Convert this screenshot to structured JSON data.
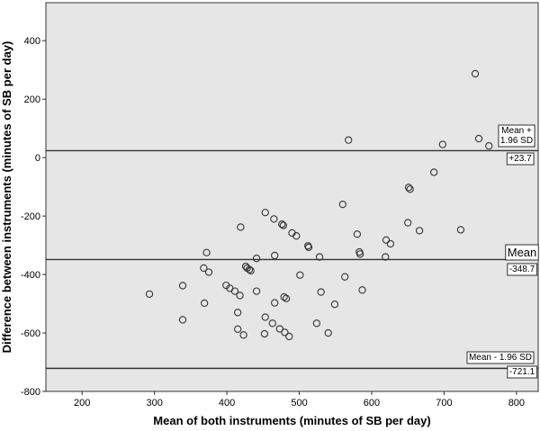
{
  "chart_data": {
    "type": "scatter",
    "xlabel": "Mean of both instruments (minutes of SB per day)",
    "ylabel": "Difference between instruments (minutes of SB per day)",
    "xlim": [
      150,
      830
    ],
    "ylim": [
      -800,
      530
    ],
    "xticks": [
      "200",
      "300",
      "400",
      "500",
      "600",
      "700",
      "800"
    ],
    "yticks": [
      "400",
      "200",
      "0",
      "-200",
      "-400",
      "-600",
      "-800"
    ],
    "grid": false,
    "background": "#e6e6e6",
    "marker_color": "#333333",
    "reference_lines": [
      {
        "name": "upper",
        "y": 23.7,
        "label": "Mean +\n1.96 SD",
        "value_label": "+23.7"
      },
      {
        "name": "mean",
        "y": -348.7,
        "label": "Mean",
        "value_label": "-348.7"
      },
      {
        "name": "lower",
        "y": -721.1,
        "label": "Mean - 1.96 SD",
        "value_label": "-721.1"
      }
    ],
    "points": [
      {
        "x": 743,
        "y": 287
      },
      {
        "x": 748,
        "y": 65
      },
      {
        "x": 762,
        "y": 40
      },
      {
        "x": 698,
        "y": 45
      },
      {
        "x": 568,
        "y": 60
      },
      {
        "x": 686,
        "y": -50
      },
      {
        "x": 651,
        "y": -102
      },
      {
        "x": 653,
        "y": -108
      },
      {
        "x": 560,
        "y": -160
      },
      {
        "x": 453,
        "y": -188
      },
      {
        "x": 465,
        "y": -210
      },
      {
        "x": 476,
        "y": -228
      },
      {
        "x": 478,
        "y": -232
      },
      {
        "x": 419,
        "y": -238
      },
      {
        "x": 650,
        "y": -223
      },
      {
        "x": 723,
        "y": -247
      },
      {
        "x": 666,
        "y": -250
      },
      {
        "x": 490,
        "y": -258
      },
      {
        "x": 496,
        "y": -268
      },
      {
        "x": 580,
        "y": -262
      },
      {
        "x": 620,
        "y": -282
      },
      {
        "x": 626,
        "y": -295
      },
      {
        "x": 512,
        "y": -302
      },
      {
        "x": 513,
        "y": -307
      },
      {
        "x": 583,
        "y": -323
      },
      {
        "x": 584,
        "y": -330
      },
      {
        "x": 372,
        "y": -325
      },
      {
        "x": 441,
        "y": -345
      },
      {
        "x": 466,
        "y": -335
      },
      {
        "x": 528,
        "y": -340
      },
      {
        "x": 619,
        "y": -340
      },
      {
        "x": 426,
        "y": -372
      },
      {
        "x": 428,
        "y": -378
      },
      {
        "x": 431,
        "y": -383
      },
      {
        "x": 433,
        "y": -387
      },
      {
        "x": 368,
        "y": -378
      },
      {
        "x": 375,
        "y": -392
      },
      {
        "x": 501,
        "y": -402
      },
      {
        "x": 563,
        "y": -408
      },
      {
        "x": 339,
        "y": -438
      },
      {
        "x": 399,
        "y": -437
      },
      {
        "x": 404,
        "y": -447
      },
      {
        "x": 411,
        "y": -457
      },
      {
        "x": 441,
        "y": -457
      },
      {
        "x": 530,
        "y": -460
      },
      {
        "x": 587,
        "y": -453
      },
      {
        "x": 293,
        "y": -467
      },
      {
        "x": 418,
        "y": -472
      },
      {
        "x": 479,
        "y": -477
      },
      {
        "x": 482,
        "y": -482
      },
      {
        "x": 466,
        "y": -497
      },
      {
        "x": 369,
        "y": -498
      },
      {
        "x": 549,
        "y": -502
      },
      {
        "x": 415,
        "y": -530
      },
      {
        "x": 453,
        "y": -546
      },
      {
        "x": 339,
        "y": -555
      },
      {
        "x": 463,
        "y": -567
      },
      {
        "x": 524,
        "y": -567
      },
      {
        "x": 415,
        "y": -587
      },
      {
        "x": 473,
        "y": -586
      },
      {
        "x": 480,
        "y": -598
      },
      {
        "x": 452,
        "y": -603
      },
      {
        "x": 423,
        "y": -607
      },
      {
        "x": 486,
        "y": -612
      },
      {
        "x": 540,
        "y": -600
      }
    ]
  }
}
